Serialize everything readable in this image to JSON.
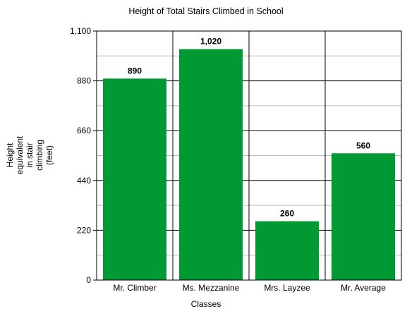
{
  "chart_data": {
    "type": "bar",
    "title": "Height of Total Stairs Climbed in School",
    "xlabel": "Classes",
    "ylabel_lines": [
      "Height",
      "equivalent",
      "in stair",
      "climbing",
      "(feet)"
    ],
    "categories": [
      "Mr. Climber",
      "Ms. Mezzanine",
      "Mrs. Layzee",
      "Mr. Average"
    ],
    "values": [
      890,
      1020,
      260,
      560
    ],
    "value_labels": [
      "890",
      "1,020",
      "260",
      "560"
    ],
    "ylim": [
      0,
      1100
    ],
    "yticks": [
      0,
      220,
      440,
      660,
      880,
      1100
    ],
    "ytick_labels": [
      "0",
      "220",
      "440",
      "660",
      "880",
      "1,100"
    ],
    "grid": true,
    "bar_color": "#009933"
  }
}
